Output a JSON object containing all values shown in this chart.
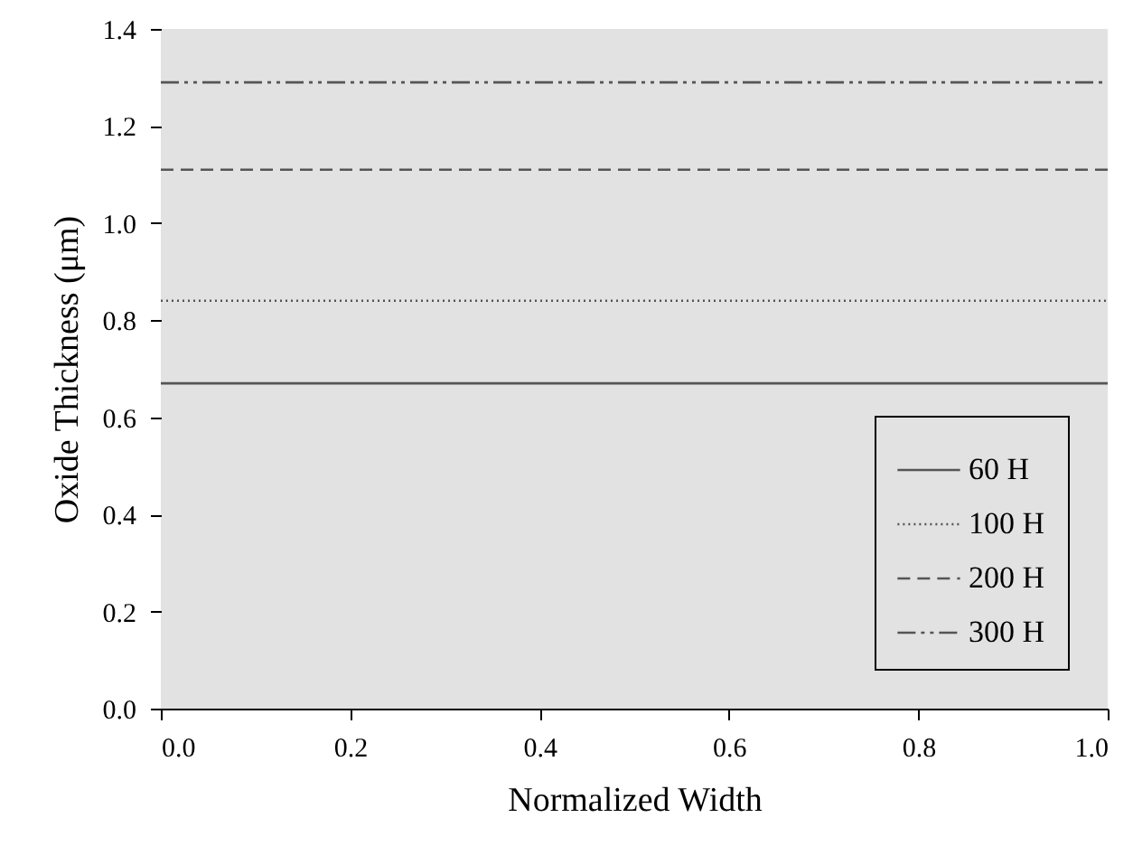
{
  "chart_data": {
    "type": "line",
    "xlabel": "Normalized Width",
    "ylabel": "Oxide Thickness (μm)",
    "x": [
      0,
      1
    ],
    "series": [
      {
        "name": "60 H",
        "color": "#555555",
        "line_style": "solid",
        "values": [
          0.67,
          0.67
        ]
      },
      {
        "name": "100 H",
        "color": "#555555",
        "line_style": "dotted",
        "values": [
          0.84,
          0.84
        ]
      },
      {
        "name": "200 H",
        "color": "#555555",
        "line_style": "dashed",
        "values": [
          1.11,
          1.11
        ]
      },
      {
        "name": "300 H",
        "color": "#555555",
        "line_style": "dashdot",
        "values": [
          1.29,
          1.29
        ]
      }
    ],
    "xlim": [
      0,
      1
    ],
    "ylim": [
      0,
      1.4
    ],
    "xticks": [
      {
        "value": 0,
        "label": "0.0"
      },
      {
        "value": 0.2,
        "label": "0.2"
      },
      {
        "value": 0.4,
        "label": "0.4"
      },
      {
        "value": 0.6,
        "label": "0.6"
      },
      {
        "value": 0.8,
        "label": "0.8"
      },
      {
        "value": 1,
        "label": "1.0"
      }
    ],
    "yticks": [
      {
        "value": 0,
        "label": "0.0"
      },
      {
        "value": 0.2,
        "label": "0.2"
      },
      {
        "value": 0.4,
        "label": "0.4"
      },
      {
        "value": 0.6,
        "label": "0.6"
      },
      {
        "value": 0.8,
        "label": "0.8"
      },
      {
        "value": 1,
        "label": "1.0"
      },
      {
        "value": 1.2,
        "label": "1.2"
      },
      {
        "value": 1.4,
        "label": "1.4"
      }
    ],
    "legend": "bottom right",
    "grid": false,
    "marker": "none"
  }
}
